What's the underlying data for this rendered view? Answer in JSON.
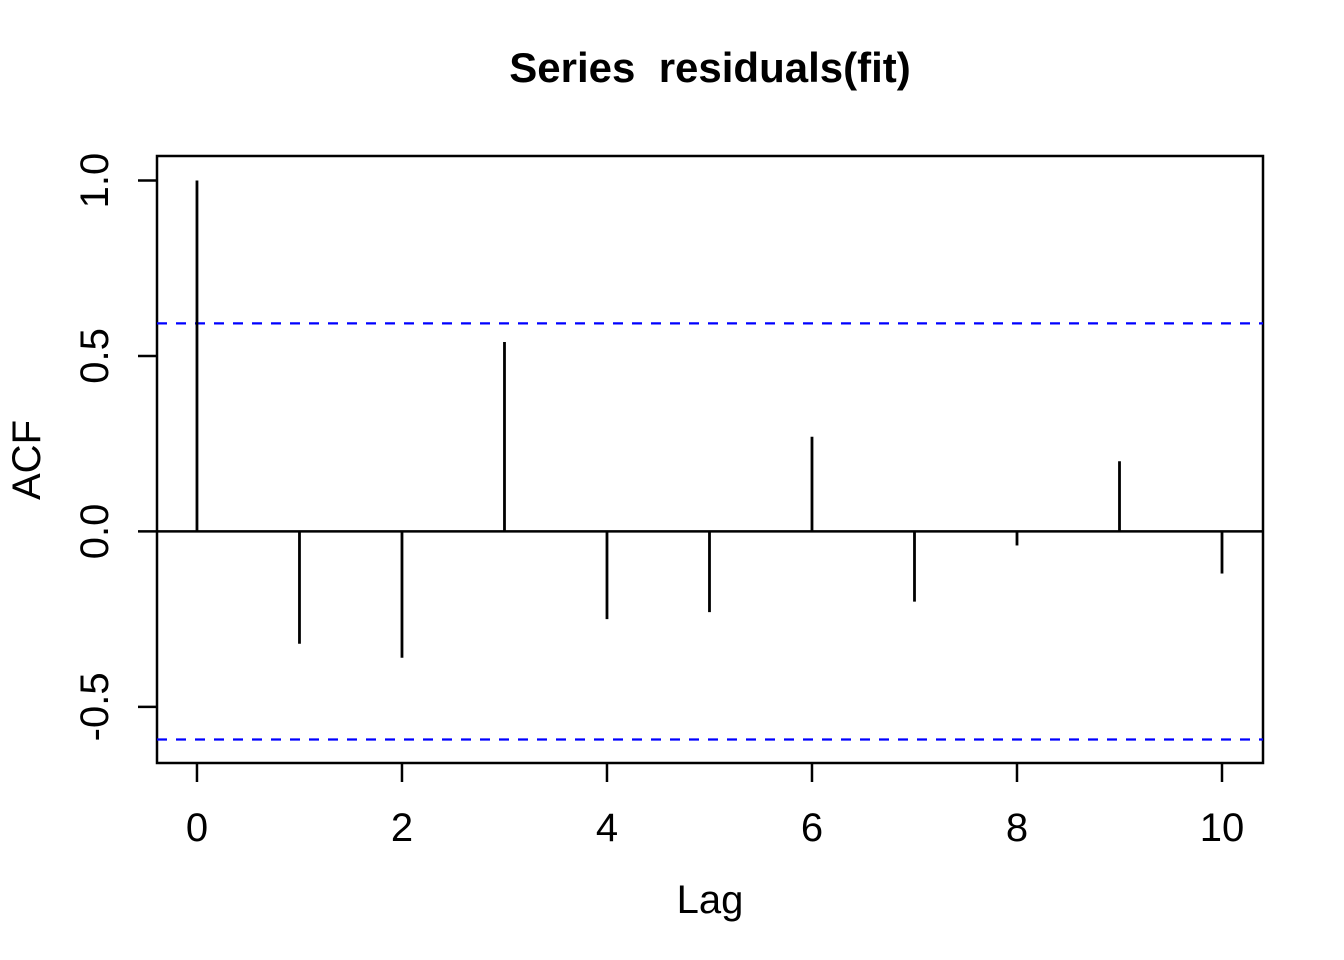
{
  "chart_data": {
    "type": "bar",
    "subtype": "acf-stem-plot",
    "title": "Series  residuals(fit)",
    "xlabel": "Lag",
    "ylabel": "ACF",
    "x": [
      0,
      1,
      2,
      3,
      4,
      5,
      6,
      7,
      8,
      9,
      10
    ],
    "values": [
      1.0,
      -0.32,
      -0.36,
      0.54,
      -0.25,
      -0.23,
      0.27,
      -0.2,
      -0.04,
      0.2,
      -0.12
    ],
    "conf_bounds": {
      "upper": 0.593,
      "lower": -0.593
    },
    "x_ticks": [
      0,
      2,
      4,
      6,
      8,
      10
    ],
    "y_ticks": [
      {
        "value": 1.0,
        "label": "1.0"
      },
      {
        "value": 0.5,
        "label": "0.5"
      },
      {
        "value": 0.0,
        "label": "0.0"
      },
      {
        "value": -0.5,
        "label": "-0.5"
      }
    ],
    "xlim": [
      -0.39,
      10.4
    ],
    "ylim": [
      -0.66,
      1.07
    ],
    "grid": false,
    "legend": null,
    "colors": {
      "stem": "#000000",
      "axis": "#000000",
      "conf_line": "#0000FF",
      "background": "#FFFFFF",
      "text": "#000000"
    }
  }
}
